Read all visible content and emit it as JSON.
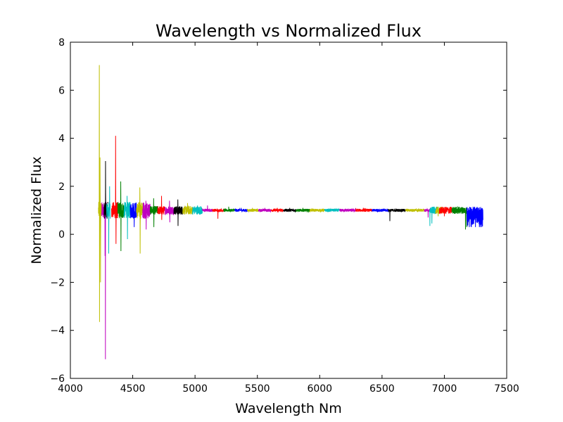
{
  "chart_data": {
    "type": "line",
    "title": "Wavelength vs Normalized Flux",
    "xlabel": "Wavelength Nm",
    "ylabel": "Normalized Flux",
    "xlim": [
      4000,
      7500
    ],
    "ylim": [
      -6,
      8
    ],
    "xticks": [
      4000,
      4500,
      5000,
      5500,
      6000,
      6500,
      7000,
      7500
    ],
    "yticks": [
      -6,
      -4,
      -2,
      0,
      2,
      4,
      6,
      8
    ],
    "xtick_labels": [
      "4000",
      "4500",
      "5000",
      "5500",
      "6000",
      "6500",
      "7000",
      "7500"
    ],
    "ytick_labels": [
      "−6",
      "−4",
      "−2",
      "0",
      "2",
      "4",
      "6",
      "8"
    ],
    "grid": false,
    "legend": false,
    "color_cycle": [
      "#0000ff",
      "#008000",
      "#ff0000",
      "#00bfbf",
      "#bf00bf",
      "#bfbf00",
      "#000000"
    ],
    "series": [
      {
        "x_range": [
          4225,
          4250
        ],
        "color": "#bfbf00",
        "spikes": [
          [
            4232,
            7.05
          ],
          [
            4234,
            -3.65
          ],
          [
            4238,
            3.2
          ],
          [
            4242,
            -2.0
          ]
        ]
      },
      {
        "x_range": [
          4250,
          4290
        ],
        "color": "#bf00bf",
        "spikes": [
          [
            4281,
            -5.2
          ],
          [
            4282,
            1.7
          ],
          [
            4278,
            -0.9
          ]
        ]
      },
      {
        "x_range": [
          4270,
          4300
        ],
        "color": "#000000",
        "spikes": [
          [
            4282,
            3.05
          ]
        ]
      },
      {
        "x_range": [
          4290,
          4320
        ],
        "color": "#00bfbf",
        "spikes": [
          [
            4308,
            -0.8
          ],
          [
            4315,
            2.0
          ]
        ]
      },
      {
        "x_range": [
          4330,
          4380
        ],
        "color": "#ff0000",
        "spikes": [
          [
            4363,
            4.1
          ],
          [
            4366,
            -0.4
          ]
        ]
      },
      {
        "x_range": [
          4380,
          4430
        ],
        "color": "#008000",
        "spikes": [
          [
            4404,
            2.2
          ],
          [
            4406,
            -0.7
          ]
        ]
      },
      {
        "x_range": [
          4430,
          4480
        ],
        "color": "#00bfbf",
        "spikes": [
          [
            4455,
            1.6
          ],
          [
            4458,
            -0.2
          ]
        ]
      },
      {
        "x_range": [
          4480,
          4530
        ],
        "color": "#0000ff",
        "spikes": [
          [
            4510,
            1.3
          ],
          [
            4512,
            0.3
          ]
        ]
      },
      {
        "x_range": [
          4530,
          4580
        ],
        "color": "#bfbf00",
        "spikes": [
          [
            4557,
            1.95
          ],
          [
            4560,
            -0.8
          ]
        ]
      },
      {
        "x_range": [
          4580,
          4640
        ],
        "color": "#bf00bf",
        "spikes": [
          [
            4606,
            1.4
          ],
          [
            4608,
            0.2
          ]
        ]
      },
      {
        "x_range": [
          4640,
          4700
        ],
        "color": "#008000",
        "spikes": [
          [
            4668,
            1.5
          ],
          [
            4670,
            0.3
          ]
        ]
      },
      {
        "x_range": [
          4700,
          4760
        ],
        "color": "#ff0000",
        "spikes": [
          [
            4731,
            1.6
          ],
          [
            4733,
            0.6
          ]
        ]
      },
      {
        "x_range": [
          4760,
          4830
        ],
        "color": "#bf00bf",
        "spikes": [
          [
            4795,
            1.4
          ],
          [
            4798,
            0.5
          ]
        ]
      },
      {
        "x_range": [
          4830,
          4900
        ],
        "color": "#000000",
        "spikes": [
          [
            4862,
            1.45
          ],
          [
            4864,
            0.35
          ]
        ]
      },
      {
        "x_range": [
          4900,
          4980
        ],
        "color": "#bfbf00",
        "spikes": [
          [
            4940,
            1.3
          ]
        ]
      },
      {
        "x_range": [
          4980,
          5060
        ],
        "color": "#00bfbf",
        "spikes": [
          [
            5020,
            1.2
          ]
        ]
      },
      {
        "x_range": [
          5060,
          5140
        ],
        "color": "#bf00bf",
        "spikes": [
          [
            5100,
            1.2
          ]
        ]
      },
      {
        "x_range": [
          5140,
          5230
        ],
        "color": "#ff0000",
        "spikes": [
          [
            5183,
            0.65
          ]
        ]
      },
      {
        "x_range": [
          5230,
          5320
        ],
        "color": "#008000",
        "spikes": [
          [
            5270,
            1.15
          ]
        ]
      },
      {
        "x_range": [
          5320,
          5420
        ],
        "color": "#0000ff",
        "spikes": [
          [
            5370,
            1.1
          ]
        ]
      },
      {
        "x_range": [
          5420,
          5510
        ],
        "color": "#bfbf00",
        "spikes": [
          [
            5460,
            1.1
          ]
        ]
      },
      {
        "x_range": [
          5510,
          5610
        ],
        "color": "#bf00bf",
        "spikes": [
          [
            5560,
            1.1
          ]
        ]
      },
      {
        "x_range": [
          5610,
          5710
        ],
        "color": "#ff0000",
        "spikes": [
          [
            5660,
            1.1
          ]
        ]
      },
      {
        "x_range": [
          5710,
          5810
        ],
        "color": "#000000",
        "spikes": [
          [
            5760,
            1.1
          ]
        ]
      },
      {
        "x_range": [
          5810,
          5920
        ],
        "color": "#008000",
        "spikes": [
          [
            5865,
            1.1
          ]
        ]
      },
      {
        "x_range": [
          5920,
          6040
        ],
        "color": "#bfbf00",
        "spikes": [
          [
            5980,
            1.05
          ]
        ]
      },
      {
        "x_range": [
          6040,
          6160
        ],
        "color": "#00bfbf",
        "spikes": [
          [
            6100,
            1.05
          ]
        ]
      },
      {
        "x_range": [
          6160,
          6290
        ],
        "color": "#bf00bf",
        "spikes": [
          [
            6220,
            1.05
          ]
        ]
      },
      {
        "x_range": [
          6290,
          6420
        ],
        "color": "#ff0000",
        "spikes": [
          [
            6350,
            1.1
          ]
        ]
      },
      {
        "x_range": [
          6420,
          6550
        ],
        "color": "#0000ff",
        "spikes": [
          [
            6490,
            1.05
          ]
        ]
      },
      {
        "x_range": [
          6550,
          6690
        ],
        "color": "#000000",
        "spikes": [
          [
            6563,
            0.55
          ]
        ]
      },
      {
        "x_range": [
          6690,
          6840
        ],
        "color": "#bfbf00",
        "spikes": [
          [
            6760,
            1.05
          ]
        ]
      },
      {
        "x_range": [
          6840,
          6900
        ],
        "color": "#bf00bf",
        "spikes": [
          [
            6870,
            0.7
          ]
        ]
      },
      {
        "x_range": [
          6880,
          6950
        ],
        "color": "#00bfbf",
        "spikes": [
          [
            6884,
            0.35
          ],
          [
            6900,
            0.45
          ]
        ]
      },
      {
        "x_range": [
          6930,
          6990
        ],
        "color": "#bfbf00",
        "spikes": [
          [
            6950,
            0.75
          ]
        ]
      },
      {
        "x_range": [
          6960,
          7060
        ],
        "color": "#ff0000",
        "spikes": [
          [
            7000,
            0.75
          ]
        ]
      },
      {
        "x_range": [
          7060,
          7180
        ],
        "color": "#008000",
        "spikes": [
          [
            7170,
            0.2
          ],
          [
            7180,
            0.3
          ]
        ]
      },
      {
        "x_range": [
          7180,
          7310
        ],
        "color": "#0000ff",
        "spikes": [
          [
            7200,
            0.3
          ],
          [
            7250,
            0.3
          ],
          [
            7290,
            0.3
          ]
        ]
      }
    ]
  }
}
